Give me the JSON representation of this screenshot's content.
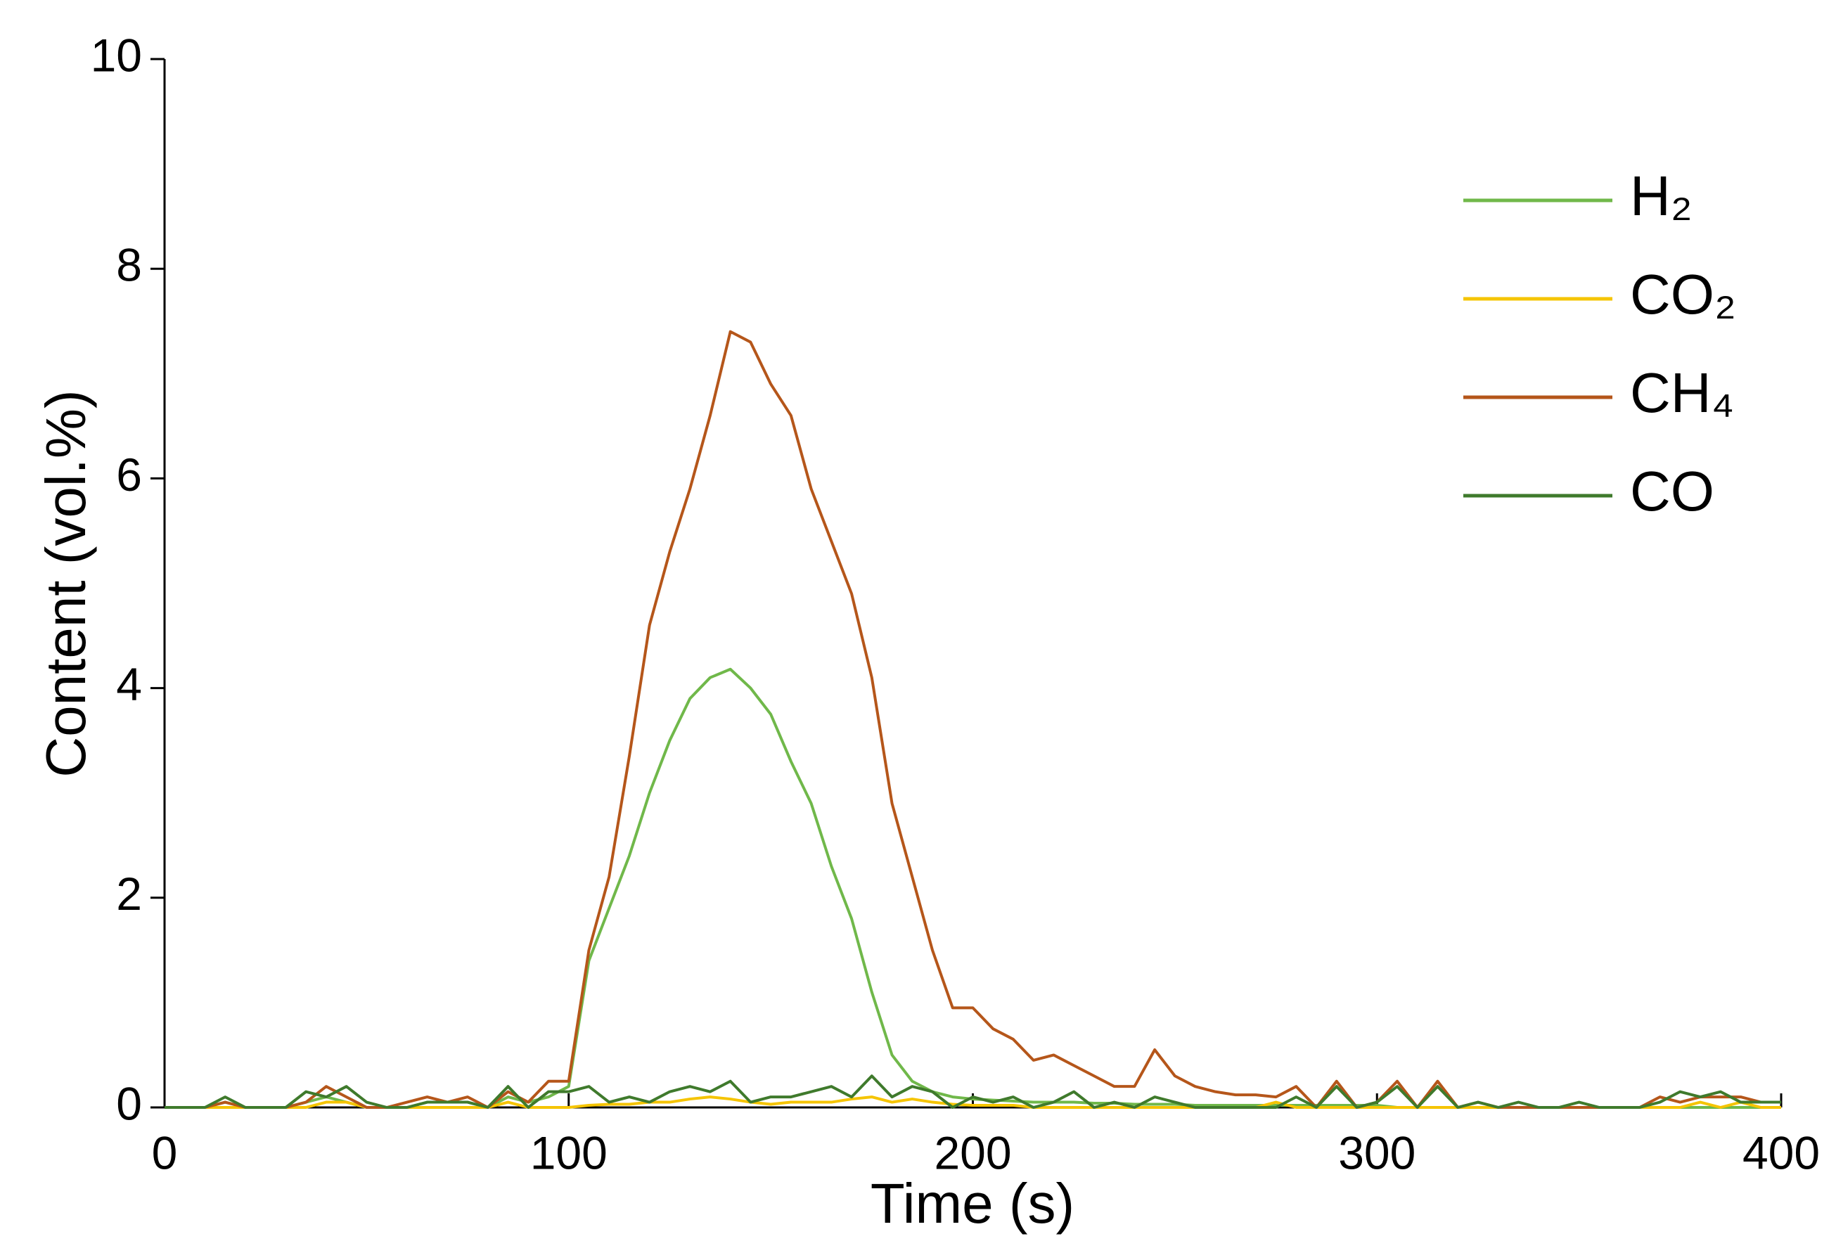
{
  "chart_data": {
    "type": "line",
    "x_label": "Time (s)",
    "y_label": "Content (vol.%)",
    "xlim": [
      0,
      400
    ],
    "xticks": [
      0,
      100,
      200,
      300,
      400
    ],
    "ylim": [
      0,
      10
    ],
    "yticks": [
      0,
      2,
      4,
      6,
      8,
      10
    ],
    "legend_position": "upper right",
    "x": [
      0,
      5,
      10,
      15,
      20,
      25,
      30,
      35,
      40,
      45,
      50,
      55,
      60,
      65,
      70,
      75,
      80,
      85,
      90,
      95,
      100,
      105,
      110,
      115,
      120,
      125,
      130,
      135,
      140,
      145,
      150,
      155,
      160,
      165,
      170,
      175,
      180,
      185,
      190,
      195,
      200,
      205,
      210,
      215,
      220,
      225,
      230,
      235,
      240,
      245,
      250,
      255,
      260,
      265,
      270,
      275,
      280,
      285,
      290,
      295,
      300,
      305,
      310,
      315,
      320,
      325,
      330,
      335,
      340,
      345,
      350,
      355,
      360,
      365,
      370,
      375,
      380,
      385,
      390,
      395,
      400
    ],
    "series": [
      {
        "name": "H₂",
        "color": "#70b84a",
        "values": [
          0,
          0,
          0,
          0.05,
          0,
          0,
          0,
          0.05,
          0.1,
          0.05,
          0,
          0,
          0,
          0.05,
          0.05,
          0.05,
          0,
          0.1,
          0.05,
          0.1,
          0.2,
          1.4,
          1.9,
          2.4,
          3.0,
          3.5,
          3.9,
          4.1,
          4.18,
          4.0,
          3.75,
          3.3,
          2.9,
          2.3,
          1.8,
          1.1,
          0.5,
          0.25,
          0.15,
          0.1,
          0.08,
          0.07,
          0.06,
          0.05,
          0.05,
          0.05,
          0.04,
          0.04,
          0.03,
          0.03,
          0.03,
          0.02,
          0.02,
          0.02,
          0.02,
          0.02,
          0.02,
          0.02,
          0.02,
          0.02,
          0.02,
          0,
          0,
          0,
          0,
          0,
          0,
          0,
          0,
          0,
          0,
          0,
          0,
          0,
          0,
          0,
          0,
          0,
          0,
          0,
          0
        ]
      },
      {
        "name": "CO₂",
        "color": "#f5c400",
        "values": [
          0,
          0,
          0,
          0,
          0,
          0,
          0,
          0,
          0.05,
          0.05,
          0,
          0,
          0,
          0,
          0,
          0,
          0,
          0.05,
          0,
          0,
          0,
          0.02,
          0.03,
          0.03,
          0.05,
          0.05,
          0.08,
          0.1,
          0.08,
          0.05,
          0.03,
          0.05,
          0.05,
          0.05,
          0.08,
          0.1,
          0.05,
          0.08,
          0.05,
          0.03,
          0.02,
          0.02,
          0.02,
          0,
          0,
          0,
          0,
          0,
          0,
          0,
          0,
          0,
          0,
          0,
          0,
          0.05,
          0,
          0,
          0,
          0,
          0,
          0,
          0,
          0,
          0,
          0,
          0,
          0,
          0,
          0,
          0,
          0,
          0,
          0,
          0,
          0,
          0.05,
          0,
          0.05,
          0,
          0
        ]
      },
      {
        "name": "CH₄",
        "color": "#b5561a",
        "values": [
          0,
          0,
          0,
          0.05,
          0,
          0,
          0,
          0.05,
          0.2,
          0.1,
          0,
          0,
          0.05,
          0.1,
          0.05,
          0.1,
          0,
          0.15,
          0.05,
          0.25,
          0.25,
          1.5,
          2.2,
          3.35,
          4.6,
          5.3,
          5.9,
          6.6,
          7.4,
          7.3,
          6.9,
          6.6,
          5.9,
          5.4,
          4.9,
          4.1,
          2.9,
          2.2,
          1.5,
          0.95,
          0.95,
          0.75,
          0.65,
          0.45,
          0.5,
          0.4,
          0.3,
          0.2,
          0.2,
          0.55,
          0.3,
          0.2,
          0.15,
          0.12,
          0.12,
          0.1,
          0.2,
          0,
          0.25,
          0,
          0.05,
          0.25,
          0,
          0.25,
          0,
          0.05,
          0,
          0,
          0,
          0,
          0,
          0,
          0,
          0,
          0.1,
          0.05,
          0.1,
          0.1,
          0.1,
          0.05,
          0.05
        ]
      },
      {
        "name": "CO",
        "color": "#3f7a2c",
        "values": [
          0,
          0,
          0,
          0.1,
          0,
          0,
          0,
          0.15,
          0.1,
          0.2,
          0.05,
          0,
          0,
          0.05,
          0.05,
          0.05,
          0,
          0.2,
          0,
          0.15,
          0.15,
          0.2,
          0.05,
          0.1,
          0.05,
          0.15,
          0.2,
          0.15,
          0.25,
          0.05,
          0.1,
          0.1,
          0.15,
          0.2,
          0.1,
          0.3,
          0.1,
          0.2,
          0.15,
          0,
          0.1,
          0.05,
          0.1,
          0,
          0.05,
          0.15,
          0,
          0.05,
          0,
          0.1,
          0.05,
          0,
          0,
          0,
          0,
          0,
          0.1,
          0,
          0.2,
          0,
          0.05,
          0.2,
          0,
          0.2,
          0,
          0.05,
          0,
          0.05,
          0,
          0,
          0.05,
          0,
          0,
          0,
          0.05,
          0.15,
          0.1,
          0.15,
          0.05,
          0.05,
          0.05
        ]
      }
    ]
  }
}
